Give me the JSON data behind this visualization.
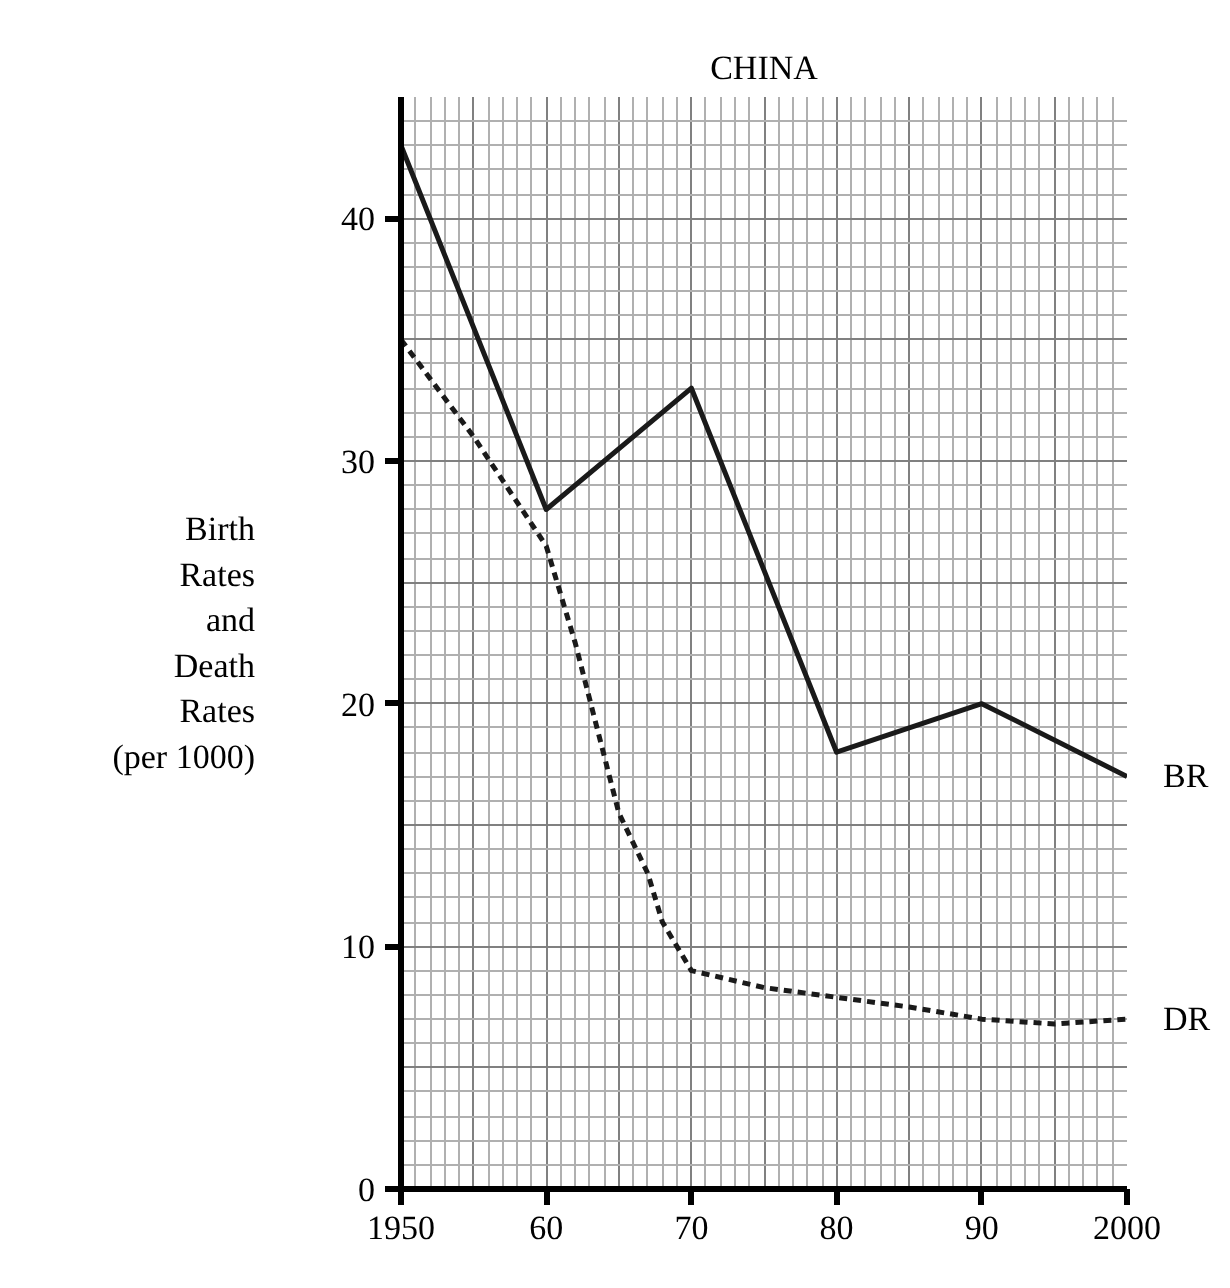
{
  "chart_data": {
    "type": "line",
    "title": "CHINA",
    "ylabel": "Birth\nRates\nand\nDeath\nRates\n(per 1000)",
    "xlim": [
      1950,
      2000
    ],
    "ylim": [
      0,
      45
    ],
    "xticks": [
      1950,
      {
        "value": 1960,
        "label": "60"
      },
      {
        "value": 1970,
        "label": "70"
      },
      {
        "value": 1980,
        "label": "80"
      },
      {
        "value": 1990,
        "label": "90"
      },
      2000
    ],
    "yticks": [
      0,
      10,
      20,
      30,
      40
    ],
    "grid": true,
    "marker": "none",
    "series": [
      {
        "color": "#1a1a1a",
        "line_style": "solid",
        "x": [
          1950,
          1960,
          1970,
          1980,
          1990,
          2000
        ],
        "values": [
          43,
          28,
          33,
          18,
          20,
          17
        ]
      },
      {
        "color": "#1a1a1a",
        "line_style": "dashed",
        "x": [
          1950,
          1955,
          1960,
          1962,
          1965,
          1967,
          1968,
          1970,
          1975,
          1980,
          1985,
          1990,
          1995,
          2000
        ],
        "values": [
          35,
          31,
          26.5,
          22.5,
          15.5,
          13,
          11,
          9,
          8.3,
          7.9,
          7.5,
          7,
          6.8,
          7
        ]
      }
    ],
    "annotations": [
      {
        "text": "BR",
        "x": 2000,
        "y": 17
      },
      {
        "text": "DR",
        "x": 2000,
        "y": 7
      }
    ]
  }
}
